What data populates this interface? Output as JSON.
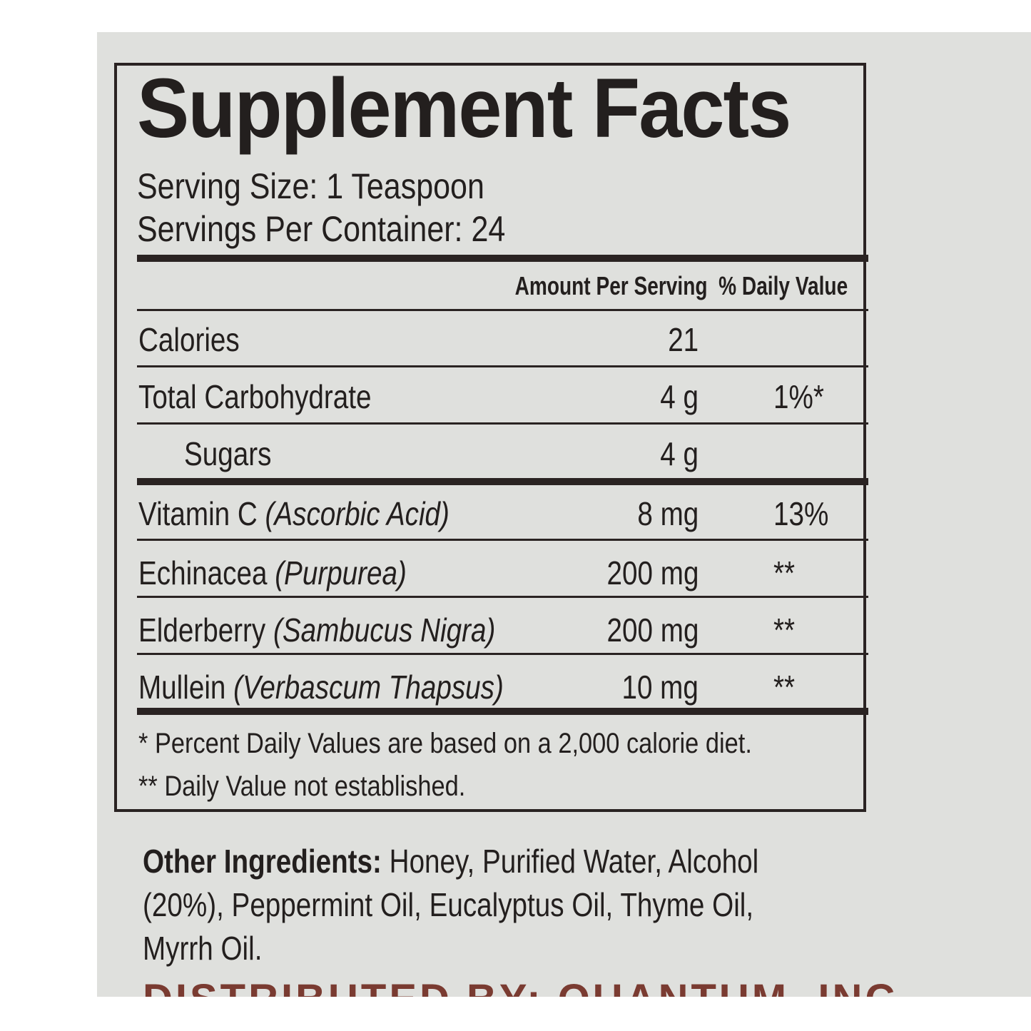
{
  "label": {
    "title": "Supplement Facts",
    "serving_size": "Serving Size: 1 Teaspoon",
    "servings_per_container": "Servings Per Container: 24",
    "header_amount": "Amount Per Serving",
    "header_dv": "% Daily Value",
    "rows": [
      {
        "name": "Calories",
        "latin": "",
        "amount": "21",
        "dv": ""
      },
      {
        "name": "Total Carbohydrate",
        "latin": "",
        "amount": "4 g",
        "dv": "1%*"
      },
      {
        "name": "Sugars",
        "latin": "",
        "amount": "4 g",
        "dv": ""
      },
      {
        "name": "Vitamin C ",
        "latin": "(Ascorbic Acid)",
        "amount": "8 mg",
        "dv": "13%"
      },
      {
        "name": "Echinacea ",
        "latin": "(Purpurea)",
        "amount": "200 mg",
        "dv": "**"
      },
      {
        "name": "Elderberry ",
        "latin": "(Sambucus Nigra)",
        "amount": "200 mg",
        "dv": "**"
      },
      {
        "name": "Mullein ",
        "latin": "(Verbascum Thapsus)",
        "amount": "10 mg",
        "dv": "**"
      }
    ],
    "footnote_1": "* Percent Daily Values are based on a 2,000 calorie diet.",
    "footnote_2": "** Daily Value not established."
  },
  "other_ingredients": {
    "label": "Other Ingredients:",
    "line1": " Honey, Purified Water, Alcohol",
    "line2": "(20%), Peppermint Oil, Eucalyptus Oil, Thyme Oil,",
    "line3": "Myrrh Oil."
  },
  "distributor": "DISTRIBUTED BY: QUANTUM, INC",
  "colors": {
    "background": "#dfe0dd",
    "ink": "#231f1e",
    "distributor": "#7a3b31"
  }
}
